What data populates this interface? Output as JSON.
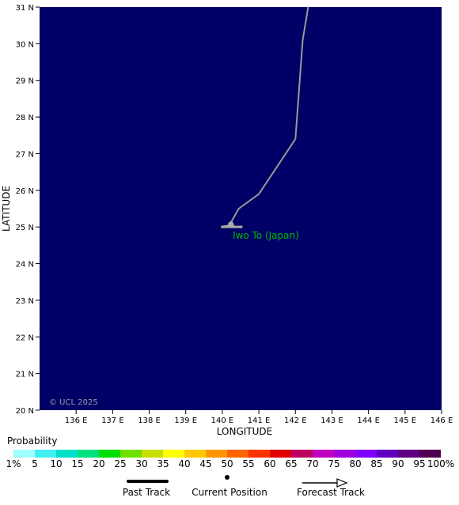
{
  "map": {
    "ocean_color": "#000066",
    "lon_range": [
      135,
      146
    ],
    "lat_range": [
      20,
      31
    ],
    "lon_ticks": [
      "136 E",
      "137 E",
      "138 E",
      "139 E",
      "140 E",
      "141 E",
      "142 E",
      "143 E",
      "144 E",
      "145 E",
      "146 E"
    ],
    "lat_ticks": [
      "20 N",
      "21 N",
      "22 N",
      "23 N",
      "24 N",
      "25 N",
      "26 N",
      "27 N",
      "28 N",
      "29 N",
      "30 N",
      "31 N"
    ],
    "xlabel": "LONGITUDE",
    "ylabel": "LATITUDE",
    "copyright": "© UCL 2025",
    "island_label": "Iwo To (Japan)",
    "island_color": "#00bb00",
    "track_color": "#999999",
    "track": [
      {
        "lon": 140.15,
        "lat": 25.0
      },
      {
        "lon": 140.25,
        "lat": 25.15
      },
      {
        "lon": 140.45,
        "lat": 25.5
      },
      {
        "lon": 141.0,
        "lat": 25.9
      },
      {
        "lon": 142.0,
        "lat": 27.4
      },
      {
        "lon": 142.2,
        "lat": 30.1
      },
      {
        "lon": 142.35,
        "lat": 31.0
      }
    ]
  },
  "legend": {
    "title": "Probability",
    "colors": [
      "#a0ffff",
      "#40f0f0",
      "#00e0c8",
      "#00e080",
      "#00e000",
      "#70e000",
      "#c8e000",
      "#ffff00",
      "#ffc800",
      "#ff9600",
      "#ff6400",
      "#ff3200",
      "#e00000",
      "#c00060",
      "#c000c0",
      "#a000e0",
      "#8000ff",
      "#6000c0",
      "#600080",
      "#500050"
    ],
    "labels": [
      "1%",
      "5",
      "10",
      "15",
      "20",
      "25",
      "30",
      "35",
      "40",
      "45",
      "50",
      "55",
      "60",
      "65",
      "70",
      "75",
      "80",
      "85",
      "90",
      "95",
      "100%"
    ]
  },
  "track_key": {
    "past": "Past Track",
    "current": "Current Position",
    "forecast": "Forecast Track"
  }
}
